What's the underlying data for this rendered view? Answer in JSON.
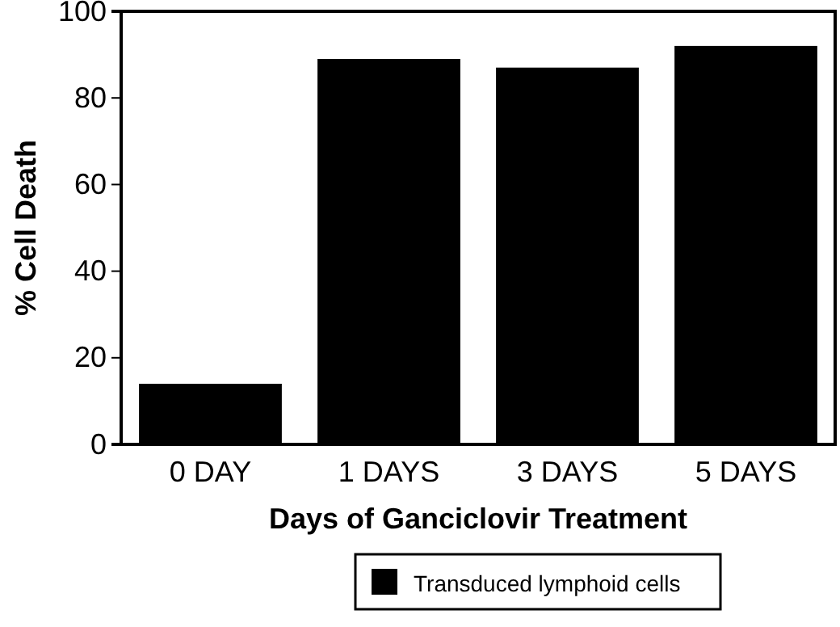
{
  "chart_data": {
    "type": "bar",
    "xlabel": "Days of Ganciclovir Treatment",
    "ylabel": "% Cell Death",
    "categories": [
      "0 DAY",
      "1 DAYS",
      "3 DAYS",
      "5 DAYS"
    ],
    "series": [
      {
        "name": "Transduced lymphoid cells",
        "color": "#000000",
        "values": [
          14,
          89,
          87,
          92
        ]
      }
    ],
    "ylim": [
      0,
      100
    ],
    "yticks": [
      0,
      20,
      40,
      60,
      80,
      100
    ],
    "grid": false,
    "legend": "bottom"
  }
}
